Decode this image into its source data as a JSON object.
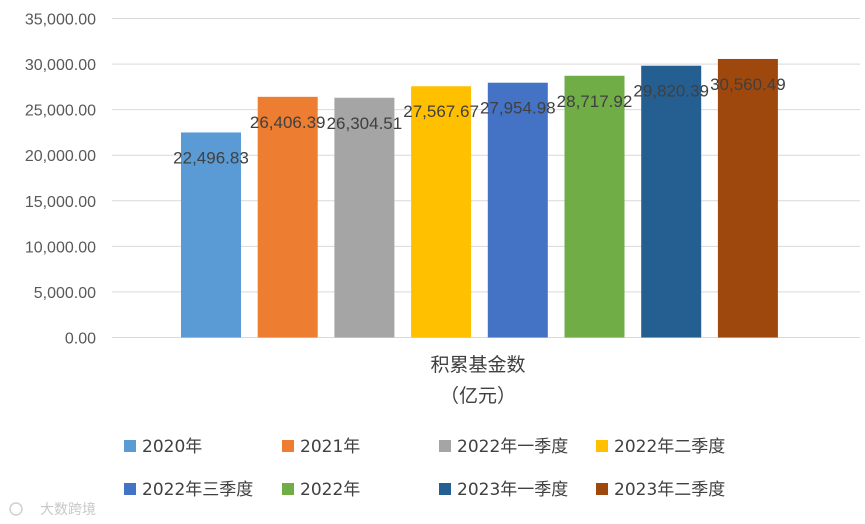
{
  "chart_data": {
    "type": "bar",
    "categories": [
      "积累基金数",
      "（亿元）"
    ],
    "series": [
      {
        "name": "2020年",
        "value": 22496.83,
        "label": "22,496.83",
        "color": "#5B9BD5"
      },
      {
        "name": "2021年",
        "value": 26406.39,
        "label": "26,406.39",
        "color": "#ED7D31"
      },
      {
        "name": "2022年一季度",
        "value": 26304.51,
        "label": "26,304.51",
        "color": "#A5A5A5"
      },
      {
        "name": "2022年二季度",
        "value": 27567.67,
        "label": "27,567.67",
        "color": "#FFC000"
      },
      {
        "name": "2022年三季度",
        "value": 27954.98,
        "label": "27,954.98",
        "color": "#4472C4"
      },
      {
        "name": "2022年",
        "value": 28717.92,
        "label": "28,717.92",
        "color": "#70AD47"
      },
      {
        "name": "2023年一季度",
        "value": 29820.39,
        "label": "29,820.39",
        "color": "#255E91"
      },
      {
        "name": "2023年二季度",
        "value": 30560.49,
        "label": "30,560.49",
        "color": "#9E480E"
      }
    ],
    "ylim": [
      0,
      35000
    ],
    "yticks": [
      "0.00",
      "5,000.00",
      "10,000.00",
      "15,000.00",
      "20,000.00",
      "25,000.00",
      "30,000.00",
      "35,000.00"
    ],
    "ytick_values": [
      0,
      5000,
      10000,
      15000,
      20000,
      25000,
      30000,
      35000
    ],
    "grid": true,
    "legend_position": "bottom"
  },
  "watermark": "大数跨境"
}
